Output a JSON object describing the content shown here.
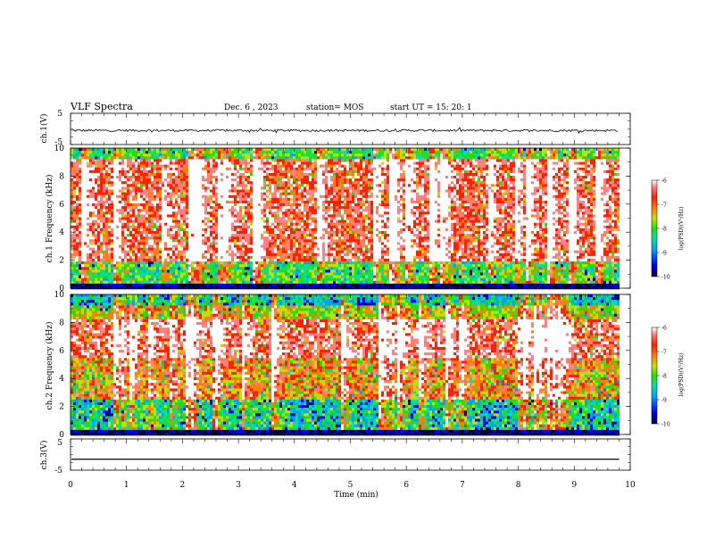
{
  "header": {
    "title": "VLF Spectra",
    "date": "Dec. 6 , 2023",
    "station": "station= MOS",
    "start": "start UT = 15: 20: 1"
  },
  "chart_data": [
    {
      "type": "line",
      "panel": "ch1-waveform",
      "ylabel": "ch.1(V)",
      "ylim": [
        -5,
        5
      ],
      "yticks": [
        "5",
        "-5"
      ],
      "xlim": [
        0,
        10
      ],
      "series": [
        {
          "values_summary": "noisy trace near -0.5 V, amplitude about ±0.3 V",
          "x_end": 9.8
        }
      ]
    },
    {
      "type": "heatmap",
      "panel": "ch1-spectrogram",
      "ylabel": "ch.1 Frequency (kHz)",
      "ylim": [
        0,
        10
      ],
      "yticks": [
        "0",
        "2",
        "4",
        "6",
        "8",
        "10"
      ],
      "xlim": [
        0,
        9.8
      ],
      "colorbar": {
        "label": "log(PSD)(V²/Hz)",
        "range": [
          -10,
          -6
        ],
        "ticks": [
          "-6",
          "-7",
          "-8",
          "-9",
          "-10"
        ]
      }
    },
    {
      "type": "heatmap",
      "panel": "ch2-spectrogram",
      "ylabel": "ch.2 Frequency (kHz)",
      "ylim": [
        0,
        10
      ],
      "yticks": [
        "0",
        "2",
        "4",
        "6",
        "8",
        "10"
      ],
      "xlim": [
        0,
        9.8
      ],
      "colorbar": {
        "label": "log(PSD)(V²/Hz)",
        "range": [
          -10,
          -6
        ],
        "ticks": [
          "-6",
          "-7",
          "-8",
          "-9",
          "-10"
        ]
      }
    },
    {
      "type": "line",
      "panel": "ch3-waveform",
      "ylabel": "ch.3(V)",
      "ylim": [
        -5,
        5
      ],
      "yticks": [
        "5",
        "-5"
      ],
      "xlim": [
        0,
        10
      ],
      "series": [
        {
          "constant": -1.5,
          "x_end": 9.8
        }
      ]
    }
  ],
  "xaxis": {
    "label": "Time (min)",
    "ticks": [
      "0",
      "1",
      "2",
      "3",
      "4",
      "5",
      "6",
      "7",
      "8",
      "9",
      "10"
    ]
  },
  "colors": {
    "colormap": [
      "#000040",
      "#0000ff",
      "#00a0ff",
      "#00e0a0",
      "#20e000",
      "#c0e000",
      "#ff8000",
      "#ff2000",
      "#ff8080",
      "#ffffff"
    ]
  }
}
